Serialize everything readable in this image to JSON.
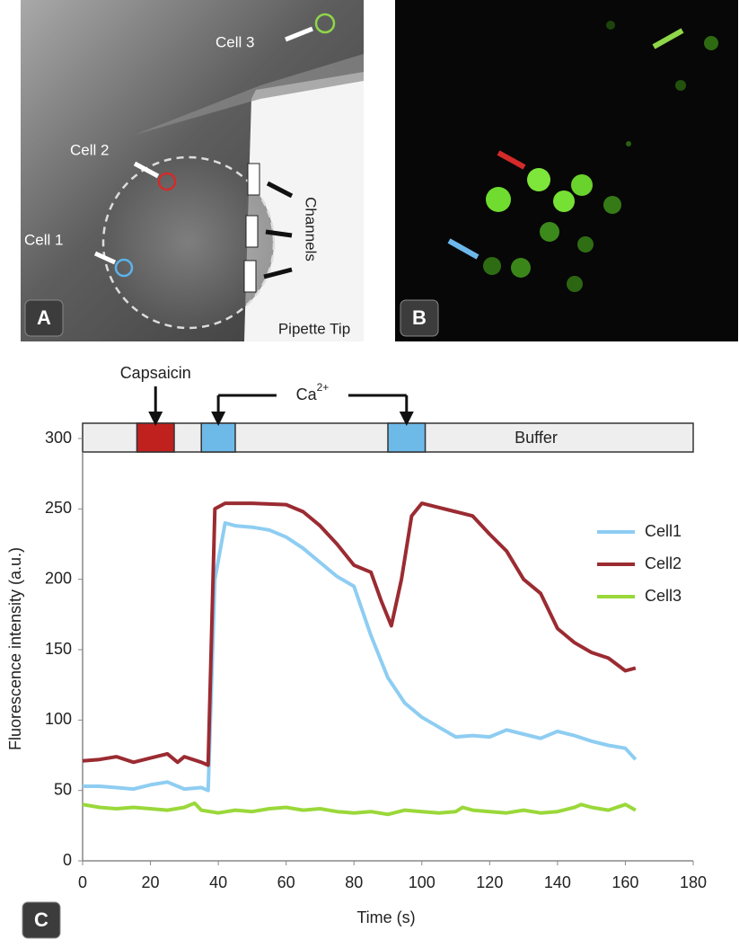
{
  "panels": {
    "a": {
      "label": "A",
      "annotations": [
        "Cell 3",
        "Cell 2",
        "Cell 1",
        "Channels",
        "Pipette Tip"
      ]
    },
    "b": {
      "label": "B"
    },
    "c": {
      "label": "C"
    }
  },
  "chart_data": {
    "type": "line",
    "xlabel": "Time (s)",
    "ylabel": "Fluorescence intensity (a.u.)",
    "xlim": [
      0,
      180
    ],
    "xticks": [
      0,
      20,
      40,
      60,
      80,
      100,
      120,
      140,
      160,
      180
    ],
    "ylim": [
      0,
      300
    ],
    "yticks": [
      0,
      50,
      100,
      150,
      200,
      250,
      300
    ],
    "legend": "right",
    "stimuli": [
      {
        "name": "Capsaicin",
        "start": 16,
        "end": 27,
        "color": "#c0201e"
      },
      {
        "name": "Ca",
        "superscript": "2+",
        "start": 35,
        "end": 45,
        "color": "#6db9e8"
      },
      {
        "start": 90,
        "end": 101,
        "color": "#6db9e8"
      }
    ],
    "background_label": "Buffer",
    "series": [
      {
        "name": "Cell1",
        "color": "#8ecdf2",
        "x": [
          0,
          5,
          10,
          15,
          20,
          25,
          30,
          35,
          37,
          39,
          42,
          45,
          50,
          55,
          60,
          65,
          70,
          75,
          80,
          85,
          90,
          95,
          100,
          105,
          110,
          115,
          120,
          125,
          130,
          135,
          140,
          145,
          150,
          155,
          160,
          163
        ],
        "values": [
          53,
          53,
          52,
          51,
          54,
          56,
          51,
          52,
          50,
          200,
          240,
          238,
          237,
          235,
          230,
          222,
          212,
          202,
          195,
          160,
          130,
          112,
          102,
          95,
          88,
          89,
          88,
          93,
          90,
          87,
          92,
          89,
          85,
          82,
          80,
          72
        ]
      },
      {
        "name": "Cell2",
        "color": "#9b2b32",
        "x": [
          0,
          5,
          10,
          15,
          20,
          25,
          28,
          30,
          35,
          37,
          39,
          42,
          50,
          60,
          65,
          70,
          75,
          80,
          85,
          88,
          91,
          94,
          97,
          100,
          105,
          110,
          115,
          120,
          125,
          130,
          135,
          140,
          145,
          150,
          155,
          160,
          163
        ],
        "values": [
          71,
          72,
          74,
          70,
          73,
          76,
          70,
          74,
          70,
          68,
          250,
          254,
          254,
          253,
          248,
          238,
          225,
          210,
          205,
          185,
          167,
          200,
          245,
          254,
          251,
          248,
          245,
          232,
          220,
          200,
          190,
          165,
          155,
          148,
          144,
          135,
          137
        ]
      },
      {
        "name": "Cell3",
        "color": "#9ad83a",
        "x": [
          0,
          5,
          10,
          15,
          20,
          25,
          30,
          33,
          35,
          40,
          45,
          50,
          55,
          60,
          65,
          70,
          75,
          80,
          85,
          90,
          95,
          100,
          105,
          110,
          112,
          115,
          120,
          125,
          130,
          135,
          140,
          145,
          147,
          150,
          155,
          160,
          163
        ],
        "values": [
          40,
          38,
          37,
          38,
          37,
          36,
          38,
          41,
          36,
          34,
          36,
          35,
          37,
          38,
          36,
          37,
          35,
          34,
          35,
          33,
          36,
          35,
          34,
          35,
          38,
          36,
          35,
          34,
          36,
          34,
          35,
          38,
          40,
          38,
          36,
          40,
          36
        ]
      }
    ]
  }
}
